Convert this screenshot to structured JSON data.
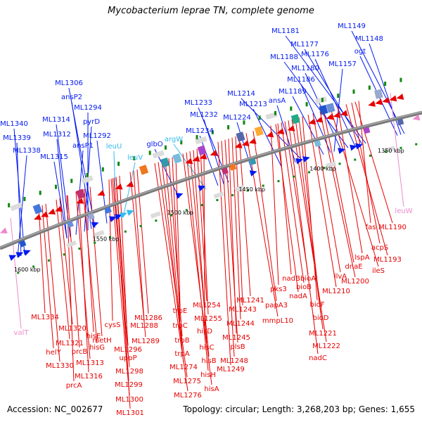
{
  "title": "Mycobacterium leprae TN, complete genome",
  "footer": {
    "accession": "Accession: NC_002677",
    "summary": "Topology: circular; Length: 3,268,203 bp; Genes: 1,655"
  },
  "colors": {
    "forward_strand": "#0018f0",
    "reverse_strand": "#e60000",
    "trna": "#33bbee",
    "rrna_other": "#ee88cc",
    "gc_skew": "#118811",
    "backbone": "#707070"
  },
  "scale_ticks": [
    {
      "label": "1350 kbp"
    },
    {
      "label": "1400 kbp"
    },
    {
      "label": "1450 kbp"
    },
    {
      "label": "1500 kbp"
    },
    {
      "label": "1550 kbp"
    },
    {
      "label": "1600 kbp"
    }
  ],
  "top_labels": [
    {
      "text": "ML1149",
      "kind": "forward"
    },
    {
      "text": "ML1148",
      "kind": "forward"
    },
    {
      "text": "ogt",
      "kind": "forward"
    },
    {
      "text": "ML1181",
      "kind": "forward"
    },
    {
      "text": "ML1177",
      "kind": "forward"
    },
    {
      "text": "ML1176",
      "kind": "forward"
    },
    {
      "text": "ML1188",
      "kind": "forward"
    },
    {
      "text": "ML1180",
      "kind": "forward"
    },
    {
      "text": "ML1157",
      "kind": "forward"
    },
    {
      "text": "ML1186",
      "kind": "forward"
    },
    {
      "text": "ML1189",
      "kind": "forward"
    },
    {
      "text": "ML1214",
      "kind": "forward"
    },
    {
      "text": "ansA",
      "kind": "forward"
    },
    {
      "text": "ML1213",
      "kind": "forward"
    },
    {
      "text": "ML1233",
      "kind": "forward"
    },
    {
      "text": "ML1232",
      "kind": "forward"
    },
    {
      "text": "ML1224",
      "kind": "forward"
    },
    {
      "text": "ML1234",
      "kind": "forward"
    },
    {
      "text": "ML1306",
      "kind": "forward"
    },
    {
      "text": "ansP2",
      "kind": "forward"
    },
    {
      "text": "ML1294",
      "kind": "forward"
    },
    {
      "text": "pyrD",
      "kind": "forward"
    },
    {
      "text": "ML1314",
      "kind": "forward"
    },
    {
      "text": "ML1312",
      "kind": "forward"
    },
    {
      "text": "ML1292",
      "kind": "forward"
    },
    {
      "text": "ansP1",
      "kind": "forward"
    },
    {
      "text": "ML1315",
      "kind": "forward"
    },
    {
      "text": "ML1340",
      "kind": "forward"
    },
    {
      "text": "ML1339",
      "kind": "forward"
    },
    {
      "text": "ML1338",
      "kind": "forward"
    },
    {
      "text": "glbO",
      "kind": "forward"
    },
    {
      "text": "argW",
      "kind": "trna"
    },
    {
      "text": "leuU",
      "kind": "trna"
    },
    {
      "text": "leuV",
      "kind": "trna"
    }
  ],
  "bottom_labels": [
    {
      "text": "fas",
      "kind": "reverse"
    },
    {
      "text": "ML1190",
      "kind": "reverse"
    },
    {
      "text": "leuW",
      "kind": "other"
    },
    {
      "text": "acpS",
      "kind": "reverse"
    },
    {
      "text": "ML1193",
      "kind": "reverse"
    },
    {
      "text": "lspA",
      "kind": "reverse"
    },
    {
      "text": "ileS",
      "kind": "reverse"
    },
    {
      "text": "dnaE",
      "kind": "reverse"
    },
    {
      "text": "ML1200",
      "kind": "reverse"
    },
    {
      "text": "ilvA",
      "kind": "reverse"
    },
    {
      "text": "ML1210",
      "kind": "reverse"
    },
    {
      "text": "nadB",
      "kind": "reverse"
    },
    {
      "text": "bioA",
      "kind": "reverse"
    },
    {
      "text": "bioB",
      "kind": "reverse"
    },
    {
      "text": "nadA",
      "kind": "reverse"
    },
    {
      "text": "pks3",
      "kind": "reverse"
    },
    {
      "text": "bioF",
      "kind": "reverse"
    },
    {
      "text": "papA3",
      "kind": "reverse"
    },
    {
      "text": "bioD",
      "kind": "reverse"
    },
    {
      "text": "mmpL10",
      "kind": "reverse"
    },
    {
      "text": "ML1221",
      "kind": "reverse"
    },
    {
      "text": "ML1222",
      "kind": "reverse"
    },
    {
      "text": "nadC",
      "kind": "reverse"
    },
    {
      "text": "ML1241",
      "kind": "reverse"
    },
    {
      "text": "ML1243",
      "kind": "reverse"
    },
    {
      "text": "ML1244",
      "kind": "reverse"
    },
    {
      "text": "ML1245",
      "kind": "reverse"
    },
    {
      "text": "plsB",
      "kind": "reverse"
    },
    {
      "text": "ML1248",
      "kind": "reverse"
    },
    {
      "text": "ML1249",
      "kind": "reverse"
    },
    {
      "text": "ML1254",
      "kind": "reverse"
    },
    {
      "text": "ML1255",
      "kind": "reverse"
    },
    {
      "text": "hisD",
      "kind": "reverse"
    },
    {
      "text": "hisC",
      "kind": "reverse"
    },
    {
      "text": "hisB",
      "kind": "reverse"
    },
    {
      "text": "hisH",
      "kind": "reverse"
    },
    {
      "text": "hisA",
      "kind": "reverse"
    },
    {
      "text": "trpE",
      "kind": "reverse"
    },
    {
      "text": "trpC",
      "kind": "reverse"
    },
    {
      "text": "trpB",
      "kind": "reverse"
    },
    {
      "text": "trpA",
      "kind": "reverse"
    },
    {
      "text": "ML1274",
      "kind": "reverse"
    },
    {
      "text": "ML1275",
      "kind": "reverse"
    },
    {
      "text": "ML1276",
      "kind": "reverse"
    },
    {
      "text": "ML1286",
      "kind": "reverse"
    },
    {
      "text": "ML1288",
      "kind": "reverse"
    },
    {
      "text": "ML1289",
      "kind": "reverse"
    },
    {
      "text": "cysS",
      "kind": "reverse"
    },
    {
      "text": "ML1296",
      "kind": "reverse"
    },
    {
      "text": "uppP",
      "kind": "reverse"
    },
    {
      "text": "ML1298",
      "kind": "reverse"
    },
    {
      "text": "ML1299",
      "kind": "reverse"
    },
    {
      "text": "ML1300",
      "kind": "reverse"
    },
    {
      "text": "ML1301",
      "kind": "reverse"
    },
    {
      "text": "ML1334",
      "kind": "reverse"
    },
    {
      "text": "ML1320",
      "kind": "reverse"
    },
    {
      "text": "hisE",
      "kind": "reverse"
    },
    {
      "text": "metH",
      "kind": "reverse"
    },
    {
      "text": "hisG",
      "kind": "reverse"
    },
    {
      "text": "ML1321",
      "kind": "reverse"
    },
    {
      "text": "prcB",
      "kind": "reverse"
    },
    {
      "text": "helY",
      "kind": "reverse"
    },
    {
      "text": "ML1313",
      "kind": "reverse"
    },
    {
      "text": "ML1330",
      "kind": "reverse"
    },
    {
      "text": "ML1316",
      "kind": "reverse"
    },
    {
      "text": "prcA",
      "kind": "reverse"
    },
    {
      "text": "valT",
      "kind": "other"
    }
  ]
}
